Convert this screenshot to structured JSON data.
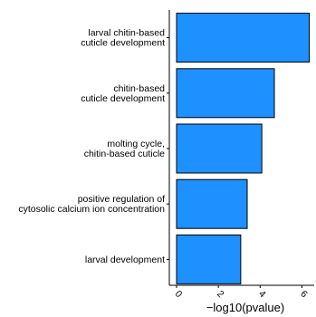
{
  "chart_data": {
    "type": "bar",
    "orientation": "horizontal",
    "categories": [
      [
        "larval chitin-based",
        "cuticle development"
      ],
      [
        "chitin-based",
        "cuticle development"
      ],
      [
        "molting cycle,",
        "chitin-based cuticle"
      ],
      [
        "positive regulation of",
        "cytosolic calcium ion concentration"
      ],
      [
        "larval development"
      ]
    ],
    "values": [
      6.35,
      4.68,
      4.08,
      3.38,
      3.07
    ],
    "xlabel": "−log10(pvalue)",
    "ylabel": "",
    "xlim": [
      0,
      6.5
    ],
    "xticks": [
      0,
      2,
      4,
      6
    ],
    "grid": false,
    "bar_color": "#1E90FF",
    "bar_edge_color": "#000000"
  }
}
